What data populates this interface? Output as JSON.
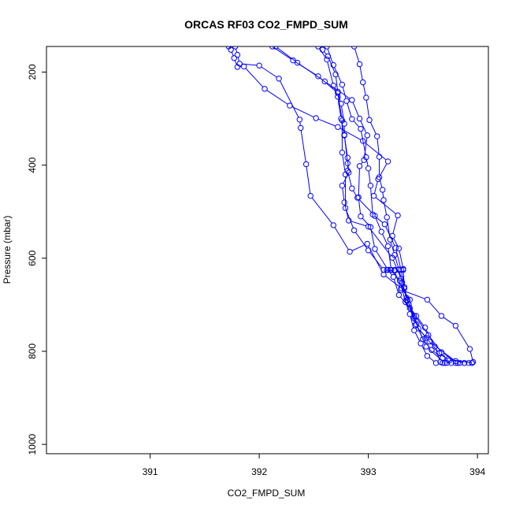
{
  "chart_data": {
    "type": "line",
    "title": "ORCAS RF03 CO2_FMPD_SUM",
    "xlabel": "CO2_FMPD_SUM",
    "ylabel": "Pressure (mbar)",
    "xlim": [
      390.05,
      394.1
    ],
    "ylim": [
      1020,
      145
    ],
    "y_reversed": true,
    "x_ticks": [
      391,
      392,
      393,
      394
    ],
    "y_ticks": [
      200,
      400,
      600,
      800,
      1000
    ],
    "grid": false,
    "series_color": "#0000ff",
    "marker": "open-circle",
    "series": [
      {
        "values": [
          [
            391.72,
            145
          ],
          [
            391.74,
            152
          ],
          [
            391.77,
            170
          ],
          [
            391.8,
            189
          ],
          [
            391.86,
            188
          ],
          [
            392.05,
            236
          ],
          [
            392.28,
            272
          ],
          [
            392.52,
            299
          ],
          [
            392.72,
            318
          ],
          [
            392.95,
            348
          ],
          [
            393.18,
            392
          ],
          [
            393.09,
            430
          ],
          [
            393.05,
            466
          ],
          [
            393.27,
            508
          ],
          [
            393.22,
            552
          ],
          [
            393.28,
            579
          ],
          [
            393.32,
            623
          ],
          [
            393.33,
            665
          ],
          [
            393.35,
            690
          ],
          [
            393.38,
            720
          ],
          [
            393.42,
            755
          ],
          [
            393.48,
            783
          ],
          [
            393.54,
            810
          ],
          [
            393.62,
            825
          ]
        ]
      },
      {
        "values": [
          [
            391.78,
            145
          ],
          [
            391.8,
            163
          ],
          [
            391.82,
            182
          ],
          [
            392.0,
            186
          ],
          [
            392.18,
            214
          ],
          [
            392.37,
            302
          ],
          [
            392.38,
            320
          ],
          [
            392.43,
            398
          ],
          [
            392.47,
            466
          ],
          [
            392.68,
            529
          ],
          [
            392.83,
            586
          ],
          [
            392.99,
            569
          ],
          [
            393.14,
            635
          ],
          [
            393.3,
            664
          ],
          [
            393.38,
            689
          ],
          [
            393.42,
            729
          ],
          [
            393.5,
            774
          ],
          [
            393.58,
            797
          ],
          [
            393.68,
            814
          ],
          [
            393.73,
            817
          ],
          [
            393.95,
            825
          ]
        ]
      },
      {
        "values": [
          [
            392.58,
            152
          ],
          [
            392.63,
            166
          ],
          [
            392.7,
            205
          ],
          [
            392.72,
            242
          ],
          [
            392.75,
            268
          ],
          [
            392.78,
            311
          ],
          [
            392.78,
            335
          ],
          [
            392.81,
            396
          ],
          [
            392.81,
            412
          ],
          [
            392.85,
            450
          ],
          [
            392.9,
            470
          ],
          [
            393.06,
            509
          ],
          [
            393.12,
            543
          ],
          [
            393.18,
            574
          ],
          [
            393.21,
            625
          ],
          [
            393.29,
            649
          ],
          [
            393.34,
            694
          ],
          [
            393.44,
            724
          ],
          [
            393.52,
            749
          ],
          [
            393.61,
            790
          ],
          [
            393.66,
            823
          ]
        ]
      },
      {
        "values": [
          [
            392.62,
            145
          ],
          [
            392.68,
            185
          ],
          [
            392.76,
            227
          ],
          [
            392.8,
            262
          ],
          [
            392.85,
            301
          ],
          [
            392.93,
            322
          ],
          [
            392.98,
            383
          ],
          [
            393.0,
            407
          ],
          [
            393.02,
            444
          ],
          [
            393.04,
            506
          ],
          [
            393.15,
            527
          ],
          [
            393.25,
            578
          ],
          [
            393.3,
            625
          ],
          [
            393.33,
            662
          ],
          [
            393.37,
            699
          ],
          [
            393.43,
            744
          ],
          [
            393.53,
            771
          ],
          [
            393.65,
            804
          ],
          [
            393.74,
            820
          ]
        ]
      },
      {
        "values": [
          [
            392.87,
            145
          ],
          [
            392.92,
            183
          ],
          [
            392.95,
            222
          ],
          [
            392.98,
            255
          ],
          [
            393.01,
            303
          ],
          [
            393.08,
            338
          ],
          [
            393.1,
            382
          ],
          [
            393.1,
            426
          ],
          [
            393.13,
            453
          ],
          [
            393.14,
            475
          ],
          [
            393.17,
            512
          ],
          [
            393.2,
            560
          ],
          [
            393.24,
            593
          ],
          [
            393.28,
            624
          ],
          [
            393.31,
            652
          ],
          [
            393.36,
            690
          ],
          [
            393.44,
            742
          ],
          [
            393.53,
            790
          ],
          [
            393.7,
            825
          ]
        ]
      },
      {
        "values": [
          [
            392.54,
            145
          ],
          [
            392.62,
            173
          ],
          [
            392.68,
            229
          ],
          [
            392.72,
            253
          ],
          [
            392.75,
            300
          ],
          [
            392.78,
            336
          ],
          [
            392.81,
            384
          ],
          [
            392.82,
            416
          ],
          [
            392.76,
            444
          ],
          [
            392.78,
            480
          ],
          [
            392.82,
            519
          ],
          [
            393.0,
            532
          ],
          [
            393.22,
            599
          ],
          [
            393.3,
            644
          ],
          [
            393.35,
            685
          ],
          [
            393.42,
            724
          ],
          [
            393.46,
            751
          ],
          [
            393.56,
            779
          ],
          [
            393.82,
            825
          ]
        ]
      },
      {
        "values": [
          [
            392.12,
            145
          ],
          [
            392.31,
            175
          ],
          [
            392.54,
            209
          ],
          [
            392.72,
            245
          ],
          [
            392.76,
            304
          ],
          [
            392.76,
            373
          ],
          [
            392.79,
            420
          ],
          [
            392.79,
            492
          ],
          [
            392.87,
            540
          ],
          [
            393.0,
            583
          ],
          [
            393.14,
            625
          ],
          [
            393.24,
            627
          ],
          [
            393.3,
            668
          ],
          [
            393.54,
            689
          ],
          [
            393.67,
            724
          ],
          [
            393.8,
            745
          ],
          [
            393.93,
            795
          ],
          [
            393.96,
            823
          ]
        ]
      },
      {
        "values": [
          [
            392.15,
            145
          ],
          [
            392.35,
            180
          ],
          [
            392.6,
            220
          ],
          [
            392.85,
            260
          ],
          [
            392.92,
            300
          ],
          [
            392.99,
            336
          ],
          [
            392.96,
            389
          ],
          [
            392.92,
            402
          ],
          [
            392.91,
            469
          ],
          [
            392.93,
            510
          ],
          [
            393.02,
            533
          ],
          [
            393.06,
            580
          ],
          [
            393.18,
            625
          ],
          [
            393.23,
            640
          ],
          [
            393.28,
            679
          ],
          [
            393.38,
            707
          ],
          [
            393.55,
            765
          ],
          [
            393.67,
            802
          ],
          [
            393.8,
            821
          ],
          [
            393.88,
            825
          ]
        ]
      },
      {
        "values": [
          [
            393.68,
            825
          ],
          [
            393.72,
            825
          ],
          [
            393.76,
            825
          ],
          [
            393.8,
            825
          ],
          [
            393.84,
            825
          ],
          [
            393.88,
            825
          ],
          [
            393.92,
            825
          ],
          [
            393.95,
            825
          ]
        ]
      },
      {
        "values": [
          [
            393.17,
            625
          ],
          [
            393.2,
            625
          ],
          [
            393.24,
            625
          ],
          [
            393.28,
            625
          ],
          [
            393.32,
            625
          ]
        ]
      }
    ]
  }
}
